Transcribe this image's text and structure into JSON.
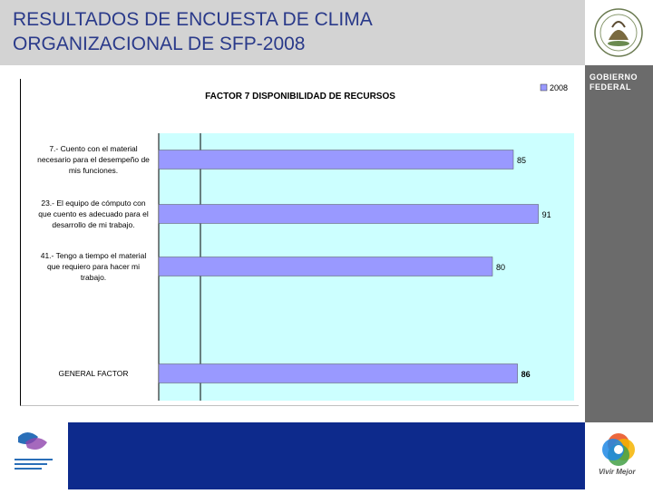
{
  "header": {
    "title": "RESULTADOS DE ENCUESTA DE CLIMA\nORGANIZACIONAL DE SFP-2008"
  },
  "branding": {
    "gobierno_federal": "GOBIERNO\nFEDERAL",
    "vivir_mejor": "Vivir Mejor",
    "institute_logo": "INSTITUTO NACIONAL DE LAS MUJERES"
  },
  "colors": {
    "header_bg": "#d3d3d3",
    "title_text": "#2a3a8a",
    "plot_bg": "#ccffff",
    "bar_fill": "#9999ff",
    "footer_bar": "#0d2a8c",
    "side_panel": "#6b6b6b"
  },
  "chart_data": {
    "type": "bar",
    "orientation": "horizontal",
    "title": "FACTOR  7 DISPONIBILIDAD DE RECURSOS",
    "categories": [
      "7.- Cuento con el material\nnecesario para el desempeño de\nmis funciones.",
      "23.- El equipo de cómputo con\nque cuento es adecuado para el\ndesarrollo de mi trabajo.",
      "41.- Tengo a tiempo el material\nque requiero para hacer mi\ntrabajo.",
      "GENERAL FACTOR"
    ],
    "series": [
      {
        "name": "2008",
        "values": [
          85,
          91,
          80,
          86
        ]
      }
    ],
    "data_labels": [
      "85",
      "91",
      "80",
      "86"
    ],
    "legend_position": "top-right",
    "xlim": [
      0,
      100
    ],
    "grid": false
  }
}
